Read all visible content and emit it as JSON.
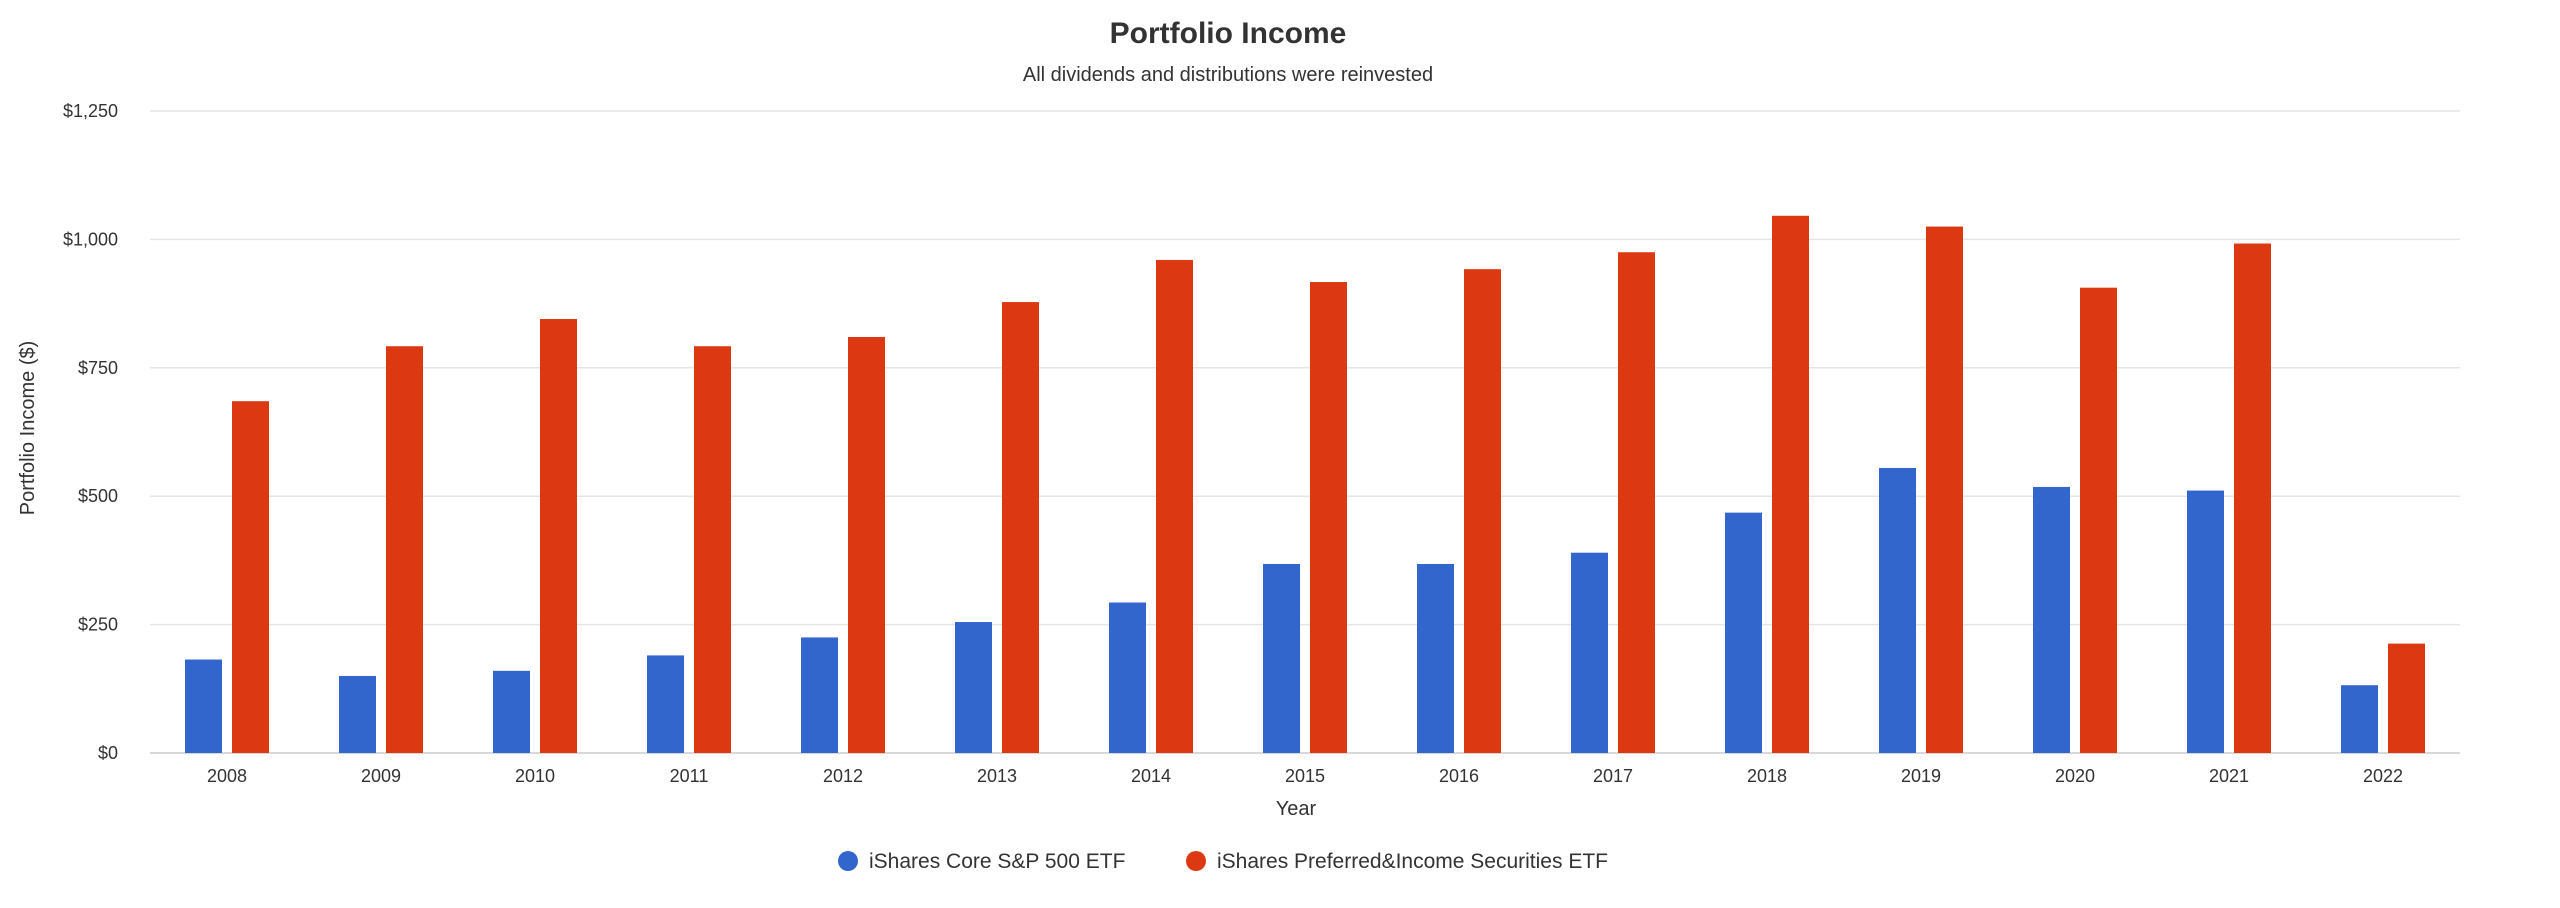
{
  "chart_data": {
    "type": "bar",
    "title": "Portfolio Income",
    "subtitle": "All dividends and distributions were reinvested",
    "xlabel": "Year",
    "ylabel": "Portfolio Income ($)",
    "ylim": [
      0,
      1250
    ],
    "yticks": [
      0,
      250,
      500,
      750,
      1000,
      1250
    ],
    "ytick_labels": [
      "$0",
      "$250",
      "$500",
      "$750",
      "$1,000",
      "$1,250"
    ],
    "grid": true,
    "legend_position": "bottom",
    "categories": [
      "2008",
      "2009",
      "2010",
      "2011",
      "2012",
      "2013",
      "2014",
      "2015",
      "2016",
      "2017",
      "2018",
      "2019",
      "2020",
      "2021",
      "2022"
    ],
    "series": [
      {
        "name": "iShares Core S&P 500 ETF",
        "color": "#3366cc",
        "values": [
          182,
          150,
          160,
          190,
          225,
          255,
          293,
          368,
          368,
          390,
          468,
          555,
          518,
          511,
          132
        ]
      },
      {
        "name": "iShares Preferred&Income Securities ETF",
        "color": "#dc3912",
        "values": [
          685,
          792,
          845,
          792,
          810,
          878,
          960,
          917,
          942,
          975,
          1046,
          1025,
          906,
          992,
          213
        ]
      }
    ]
  }
}
